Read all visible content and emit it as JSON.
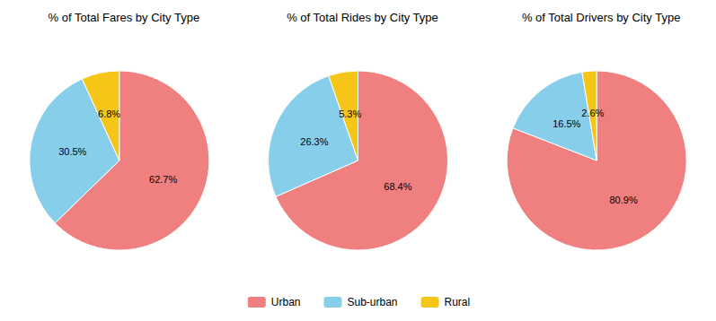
{
  "chart_data": [
    {
      "type": "pie",
      "title": "% of Total Fares by City Type",
      "categories": [
        "Urban",
        "Sub-urban",
        "Rural"
      ],
      "values": [
        62.7,
        30.5,
        6.8
      ],
      "value_labels": [
        "62.7%",
        "30.5%",
        "6.8%"
      ],
      "colors": [
        "#f08080",
        "#87ceeb",
        "#f5c518"
      ],
      "data_labels": true,
      "legend": "bottom"
    },
    {
      "type": "pie",
      "title": "% of Total Rides by City Type",
      "categories": [
        "Urban",
        "Sub-urban",
        "Rural"
      ],
      "values": [
        68.4,
        26.3,
        5.3
      ],
      "value_labels": [
        "68.4%",
        "26.3%",
        "5.3%"
      ],
      "colors": [
        "#f08080",
        "#87ceeb",
        "#f5c518"
      ],
      "data_labels": true,
      "legend": "bottom"
    },
    {
      "type": "pie",
      "title": "% of Total Drivers by City Type",
      "categories": [
        "Urban",
        "Sub-urban",
        "Rural"
      ],
      "values": [
        80.9,
        16.5,
        2.6
      ],
      "value_labels": [
        "80.9%",
        "16.5%",
        "2.6%"
      ],
      "colors": [
        "#f08080",
        "#87ceeb",
        "#f5c518"
      ],
      "data_labels": true,
      "legend": "bottom"
    }
  ]
}
